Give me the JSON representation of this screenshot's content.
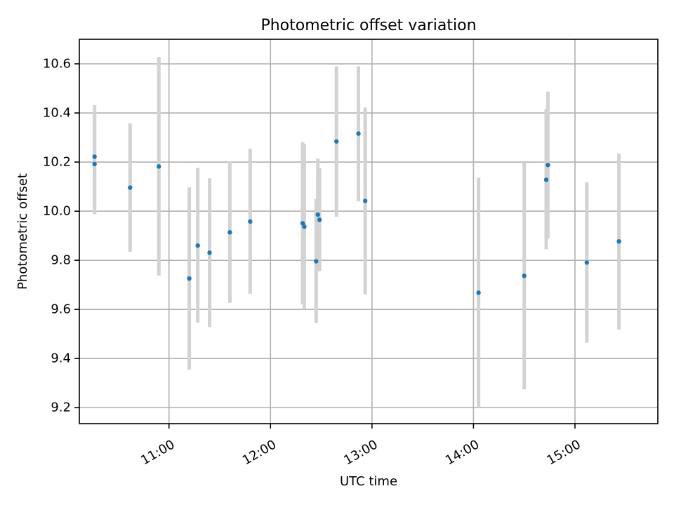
{
  "chart_data": {
    "type": "scatter",
    "title": "Photometric offset variation",
    "xlabel": "UTC time",
    "ylabel": "Photometric offset",
    "x_unit": "time of day (HH:MM)",
    "xlim": [
      "10:07",
      "15:49"
    ],
    "ylim": [
      9.135,
      10.7
    ],
    "x_ticks": [
      {
        "value": "11:00",
        "label": "11:00"
      },
      {
        "value": "12:00",
        "label": "12:00"
      },
      {
        "value": "13:00",
        "label": "13:00"
      },
      {
        "value": "14:00",
        "label": "14:00"
      },
      {
        "value": "15:00",
        "label": "15:00"
      }
    ],
    "y_ticks": [
      {
        "value": 9.2,
        "label": "9.2"
      },
      {
        "value": 9.4,
        "label": "9.4"
      },
      {
        "value": 9.6,
        "label": "9.6"
      },
      {
        "value": 9.8,
        "label": "9.8"
      },
      {
        "value": 10.0,
        "label": "10.0"
      },
      {
        "value": 10.2,
        "label": "10.2"
      },
      {
        "value": 10.4,
        "label": "10.4"
      },
      {
        "value": 10.6,
        "label": "10.6"
      }
    ],
    "grid": true,
    "x_tick_rotation_deg": 30,
    "marker_color": "#1f77b4",
    "errorbar_color": "#d3d3d3",
    "points": [
      {
        "x": "10:16",
        "y": 10.222,
        "ylow": 9.988,
        "yhigh": 10.432
      },
      {
        "x": "10:16",
        "y": 10.192,
        "ylow": 10.008,
        "yhigh": 10.398
      },
      {
        "x": "10:37",
        "y": 10.096,
        "ylow": 9.835,
        "yhigh": 10.357
      },
      {
        "x": "10:54",
        "y": 10.182,
        "ylow": 9.738,
        "yhigh": 10.628
      },
      {
        "x": "11:12",
        "y": 9.726,
        "ylow": 9.355,
        "yhigh": 10.097
      },
      {
        "x": "11:17",
        "y": 9.86,
        "ylow": 9.546,
        "yhigh": 10.177
      },
      {
        "x": "11:24",
        "y": 9.831,
        "ylow": 9.528,
        "yhigh": 10.134
      },
      {
        "x": "11:36",
        "y": 9.914,
        "ylow": 9.627,
        "yhigh": 10.201
      },
      {
        "x": "11:48",
        "y": 9.958,
        "ylow": 9.664,
        "yhigh": 10.254
      },
      {
        "x": "12:19",
        "y": 9.951,
        "ylow": 9.621,
        "yhigh": 10.281
      },
      {
        "x": "12:20",
        "y": 9.937,
        "ylow": 9.6,
        "yhigh": 10.274
      },
      {
        "x": "12:27",
        "y": 9.796,
        "ylow": 9.545,
        "yhigh": 10.05
      },
      {
        "x": "12:28",
        "y": 9.986,
        "ylow": 9.755,
        "yhigh": 10.214
      },
      {
        "x": "12:29",
        "y": 9.965,
        "ylow": 9.756,
        "yhigh": 10.175
      },
      {
        "x": "12:39",
        "y": 10.284,
        "ylow": 9.978,
        "yhigh": 10.59
      },
      {
        "x": "12:52",
        "y": 10.316,
        "ylow": 10.04,
        "yhigh": 10.59
      },
      {
        "x": "12:56",
        "y": 10.042,
        "ylow": 9.661,
        "yhigh": 10.422
      },
      {
        "x": "14:03",
        "y": 9.668,
        "ylow": 9.2,
        "yhigh": 10.136
      },
      {
        "x": "14:30",
        "y": 9.737,
        "ylow": 9.275,
        "yhigh": 10.199
      },
      {
        "x": "14:43",
        "y": 10.128,
        "ylow": 9.845,
        "yhigh": 10.416
      },
      {
        "x": "14:44",
        "y": 10.188,
        "ylow": 9.889,
        "yhigh": 10.487
      },
      {
        "x": "15:07",
        "y": 9.791,
        "ylow": 9.464,
        "yhigh": 10.118
      },
      {
        "x": "15:26",
        "y": 9.877,
        "ylow": 9.518,
        "yhigh": 10.234
      }
    ]
  }
}
